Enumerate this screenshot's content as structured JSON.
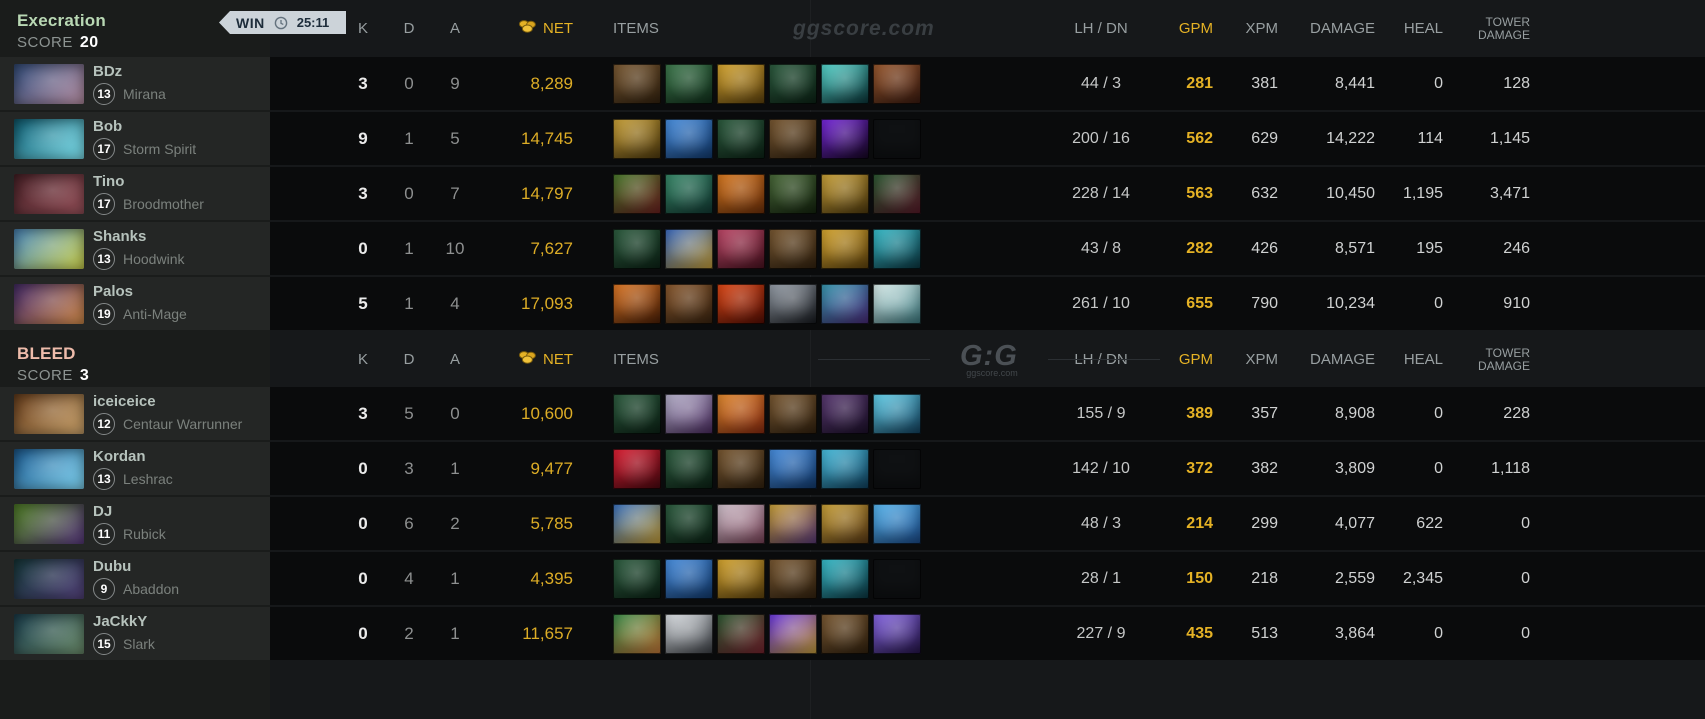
{
  "win_badge": {
    "result": "WIN",
    "time": "25:11"
  },
  "columns": {
    "k": "K",
    "d": "D",
    "a": "A",
    "net": "NET",
    "items": "ITEMS",
    "lhdn": "LH / DN",
    "gpm": "GPM",
    "xpm": "XPM",
    "damage": "DAMAGE",
    "heal": "HEAL",
    "tower_line1": "TOWER",
    "tower_line2": "DAMAGE"
  },
  "brand": {
    "watermark": "ggscore.com",
    "logo": "G:G",
    "logo_sub": "ggscore.com"
  },
  "colors": {
    "gold": "#e5b225",
    "team1_name": "#b9d8b4",
    "team2_name": "#eebcab",
    "win_badge_bg": "#ccd3d9"
  },
  "teams": [
    {
      "name": "Execration",
      "name_color": "#b9d8b4",
      "score_label": "SCORE",
      "score": "20",
      "players": [
        {
          "name": "BDz",
          "level": "13",
          "hero": "Mirana",
          "portrait": [
            "#35507e",
            "#b58ea2"
          ],
          "k": "3",
          "d": "0",
          "a": "9",
          "net": "8,289",
          "lh_dn": "44 / 3",
          "gpm": "281",
          "xpm": "381",
          "damage": "8,441",
          "heal": "0",
          "tower": "128",
          "items": [
            [
              "#7a5a34",
              "#33220f"
            ],
            [
              "#3f7a4e",
              "#11301c"
            ],
            [
              "#d8a832",
              "#5f430e"
            ],
            [
              "#2e5d40",
              "#0c2316"
            ],
            [
              "#58d8cf",
              "#0a3337"
            ],
            [
              "#9a5a30",
              "#3a1a10"
            ]
          ]
        },
        {
          "name": "Bob",
          "level": "17",
          "hero": "Storm Spirit",
          "portrait": [
            "#0f5d72",
            "#7fe2ef"
          ],
          "k": "9",
          "d": "1",
          "a": "5",
          "net": "14,745",
          "lh_dn": "200 / 16",
          "gpm": "562",
          "xpm": "629",
          "damage": "14,222",
          "heal": "114",
          "tower": "1,145",
          "items": [
            [
              "#caa23a",
              "#4f3a0e"
            ],
            [
              "#4a90e0",
              "#123a6e"
            ],
            [
              "#2e5d40",
              "#0c2316"
            ],
            [
              "#7a5a34",
              "#33220f"
            ],
            [
              "#7a2ae0",
              "#14061f"
            ],
            null
          ]
        },
        {
          "name": "Tino",
          "level": "17",
          "hero": "Broodmother",
          "portrait": [
            "#4a2228",
            "#965059"
          ],
          "k": "3",
          "d": "0",
          "a": "7",
          "net": "14,797",
          "lh_dn": "228 / 14",
          "gpm": "563",
          "xpm": "632",
          "damage": "10,450",
          "heal": "1,195",
          "tower": "3,471",
          "items": [
            [
              "#4a7a2e",
              "#6e2020"
            ],
            [
              "#3a8a6a",
              "#123a34"
            ],
            [
              "#d87a22",
              "#6e300a"
            ],
            [
              "#4a6a3a",
              "#14240e"
            ],
            [
              "#caa23a",
              "#4f3a0e"
            ],
            [
              "#2e5a34",
              "#5a1a2a"
            ]
          ]
        },
        {
          "name": "Shanks",
          "level": "13",
          "hero": "Hoodwink",
          "portrait": [
            "#4e8cc2",
            "#cdd24e"
          ],
          "k": "0",
          "d": "1",
          "a": "10",
          "net": "7,627",
          "lh_dn": "43 / 8",
          "gpm": "282",
          "xpm": "426",
          "damage": "8,571",
          "heal": "195",
          "tower": "246",
          "items": [
            [
              "#2e5d40",
              "#0c2316"
            ],
            [
              "#3a6ac0",
              "#caa23a"
            ],
            [
              "#c04a6a",
              "#4a1220"
            ],
            [
              "#7a5a34",
              "#33220f"
            ],
            [
              "#d8a832",
              "#5f430e"
            ],
            [
              "#3ac0ce",
              "#0b3540"
            ]
          ]
        },
        {
          "name": "Palos",
          "level": "19",
          "hero": "Anti-Mage",
          "portrait": [
            "#4a3070",
            "#d08a4a"
          ],
          "k": "5",
          "d": "1",
          "a": "4",
          "net": "17,093",
          "lh_dn": "261 / 10",
          "gpm": "655",
          "xpm": "790",
          "damage": "10,234",
          "heal": "0",
          "tower": "910",
          "items": [
            [
              "#e07a28",
              "#4a1e06"
            ],
            [
              "#8a5a30",
              "#3a2410"
            ],
            [
              "#e04a18",
              "#560e04"
            ],
            [
              "#9aa2ac",
              "#15181d"
            ],
            [
              "#3a9ab0",
              "#4a2a7a"
            ],
            [
              "#dff0ee",
              "#3a7a80"
            ]
          ]
        }
      ]
    },
    {
      "name": "BLEED",
      "name_color": "#eebcab",
      "score_label": "SCORE",
      "score": "3",
      "players": [
        {
          "name": "iceiceice",
          "level": "12",
          "hero": "Centaur Warrunner",
          "portrait": [
            "#6a401e",
            "#caa26a"
          ],
          "k": "3",
          "d": "5",
          "a": "0",
          "net": "10,600",
          "lh_dn": "155 / 9",
          "gpm": "389",
          "xpm": "357",
          "damage": "8,908",
          "heal": "0",
          "tower": "228",
          "items": [
            [
              "#2e5d40",
              "#0c2316"
            ],
            [
              "#b8b4cc",
              "#4a2a60"
            ],
            [
              "#e08a30",
              "#8a2a10"
            ],
            [
              "#7a5a34",
              "#33220f"
            ],
            [
              "#5a3a72",
              "#1c102a"
            ],
            [
              "#66d4ee",
              "#12405e"
            ]
          ]
        },
        {
          "name": "Kordan",
          "level": "13",
          "hero": "Leshrac",
          "portrait": [
            "#1d5c92",
            "#7fd4f2"
          ],
          "k": "0",
          "d": "3",
          "a": "1",
          "net": "9,477",
          "lh_dn": "142 / 10",
          "gpm": "372",
          "xpm": "382",
          "damage": "3,809",
          "heal": "0",
          "tower": "1,118",
          "items": [
            [
              "#e02236",
              "#4a0810"
            ],
            [
              "#2e5d40",
              "#0c2316"
            ],
            [
              "#7a5a34",
              "#33220f"
            ],
            [
              "#4a90e0",
              "#123a6e"
            ],
            [
              "#4ac0e0",
              "#10405e"
            ],
            null
          ]
        },
        {
          "name": "DJ",
          "level": "11",
          "hero": "Rubick",
          "portrait": [
            "#55862a",
            "#5a3a7e"
          ],
          "k": "0",
          "d": "6",
          "a": "2",
          "net": "5,785",
          "lh_dn": "48 / 3",
          "gpm": "214",
          "xpm": "299",
          "damage": "4,077",
          "heal": "622",
          "tower": "0",
          "items": [
            [
              "#3a72c0",
              "#caa23a"
            ],
            [
              "#2e5d40",
              "#0c2316"
            ],
            [
              "#d0c2cc",
              "#7a4258"
            ],
            [
              "#caa23a",
              "#5a3a7a"
            ],
            [
              "#caa23a",
              "#5a3a16"
            ],
            [
              "#5ab8f0",
              "#1a4a8a"
            ]
          ]
        },
        {
          "name": "Dubu",
          "level": "9",
          "hero": "Abaddon",
          "portrait": [
            "#173a3c",
            "#53427a"
          ],
          "k": "0",
          "d": "4",
          "a": "1",
          "net": "4,395",
          "lh_dn": "28 / 1",
          "gpm": "150",
          "xpm": "218",
          "damage": "2,559",
          "heal": "2,345",
          "tower": "0",
          "items": [
            [
              "#2e5d40",
              "#0c2316"
            ],
            [
              "#4a90e0",
              "#123a6e"
            ],
            [
              "#d8a832",
              "#5f430e"
            ],
            [
              "#7a5a34",
              "#33220f"
            ],
            [
              "#3ac0ce",
              "#0b3540"
            ],
            null
          ]
        },
        {
          "name": "JaCkkY",
          "level": "15",
          "hero": "Slark",
          "portrait": [
            "#1d4150",
            "#6a8a6a"
          ],
          "k": "0",
          "d": "2",
          "a": "1",
          "net": "11,657",
          "lh_dn": "227 / 9",
          "gpm": "435",
          "xpm": "513",
          "damage": "3,864",
          "heal": "0",
          "tower": "0",
          "items": [
            [
              "#3a8a4a",
              "#c87a3a"
            ],
            [
              "#e0e4e8",
              "#3a3e44"
            ],
            [
              "#2e5a34",
              "#7a2430"
            ],
            [
              "#6a3ae0",
              "#caa23a"
            ],
            [
              "#7a5a34",
              "#33220f"
            ],
            [
              "#8a6ae8",
              "#241448"
            ]
          ]
        }
      ]
    }
  ]
}
